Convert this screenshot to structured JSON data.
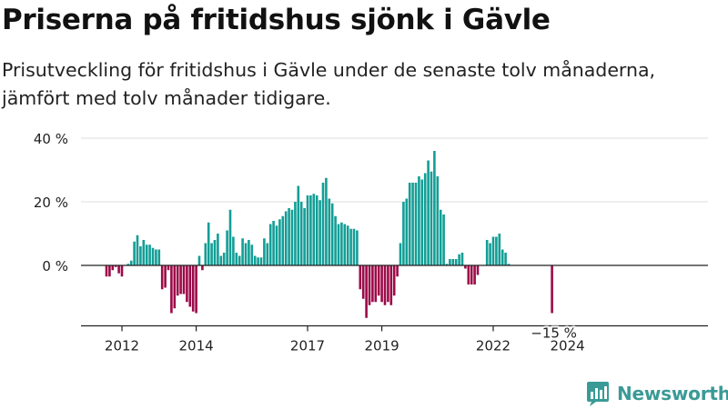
{
  "header": {
    "title": "Priserna på fritidshus sjönk i Gävle",
    "subtitle": "Prisutveckling för fritidshus i Gävle under de senaste tolv månaderna, jämfört med tolv månader tidigare."
  },
  "brand": {
    "name": "Newsworthy",
    "color": "#3a9a96",
    "icon": "bar-chart-logo-icon"
  },
  "colors": {
    "positive": "#139e96",
    "negative": "#9c0a48",
    "grid": "#dcdcdc",
    "baseline": "#222222"
  },
  "chart_data": {
    "type": "bar",
    "start": "2011-08",
    "frequency": "monthly",
    "values": [
      -3.5,
      -3.5,
      -1.5,
      -0.5,
      -2.5,
      -3.5,
      0,
      0.5,
      1.5,
      7.5,
      9.5,
      6,
      8,
      6.5,
      6.5,
      5.5,
      5,
      5,
      -7.5,
      -7,
      -1.5,
      -15,
      -13.5,
      -9.5,
      -9,
      -9,
      -11.5,
      -13,
      -14.5,
      -15,
      3,
      -1.5,
      7,
      13.5,
      7,
      8,
      10,
      3,
      4,
      11,
      17.5,
      9,
      4,
      3,
      8.5,
      7,
      8,
      6.5,
      3,
      2.5,
      2.5,
      8.5,
      7,
      13,
      14,
      12.5,
      14.5,
      15.5,
      17,
      18,
      17.5,
      20,
      25,
      20,
      18,
      22,
      22,
      22.5,
      22,
      20.5,
      26,
      27.5,
      21,
      19.5,
      15.5,
      13,
      13.5,
      13,
      12.5,
      11.5,
      11.5,
      11,
      -7.5,
      -10.5,
      -16.5,
      -12.5,
      -11.5,
      -11.5,
      -9.5,
      -11.5,
      -12.5,
      -11.5,
      -12.5,
      -9.5,
      -3.5,
      7,
      20,
      21,
      26,
      26,
      26,
      28,
      27,
      29,
      33,
      29.5,
      36,
      28,
      17.5,
      16,
      0.5,
      2,
      2,
      2,
      3.5,
      4,
      -1,
      -6,
      -6,
      -6,
      -3,
      0,
      0,
      8,
      7,
      9,
      9,
      10,
      5,
      4,
      0.5,
      0,
      0,
      0,
      0,
      0,
      0,
      0,
      0,
      0,
      0,
      0,
      0,
      0,
      -15
    ],
    "x_ticks": [
      {
        "label": "2012",
        "year": 2012
      },
      {
        "label": "2014",
        "year": 2014
      },
      {
        "label": "2017",
        "year": 2017
      },
      {
        "label": "2019",
        "year": 2019
      },
      {
        "label": "2022",
        "year": 2022
      },
      {
        "label": "2024",
        "year": 2024
      }
    ],
    "y_ticks": [
      {
        "label": "40 %",
        "value": 40
      },
      {
        "label": "20 %",
        "value": 20
      },
      {
        "label": "0 %",
        "value": 0
      }
    ],
    "ylim": [
      -19,
      40
    ],
    "grid": true,
    "last_value_label": "−15 %"
  }
}
